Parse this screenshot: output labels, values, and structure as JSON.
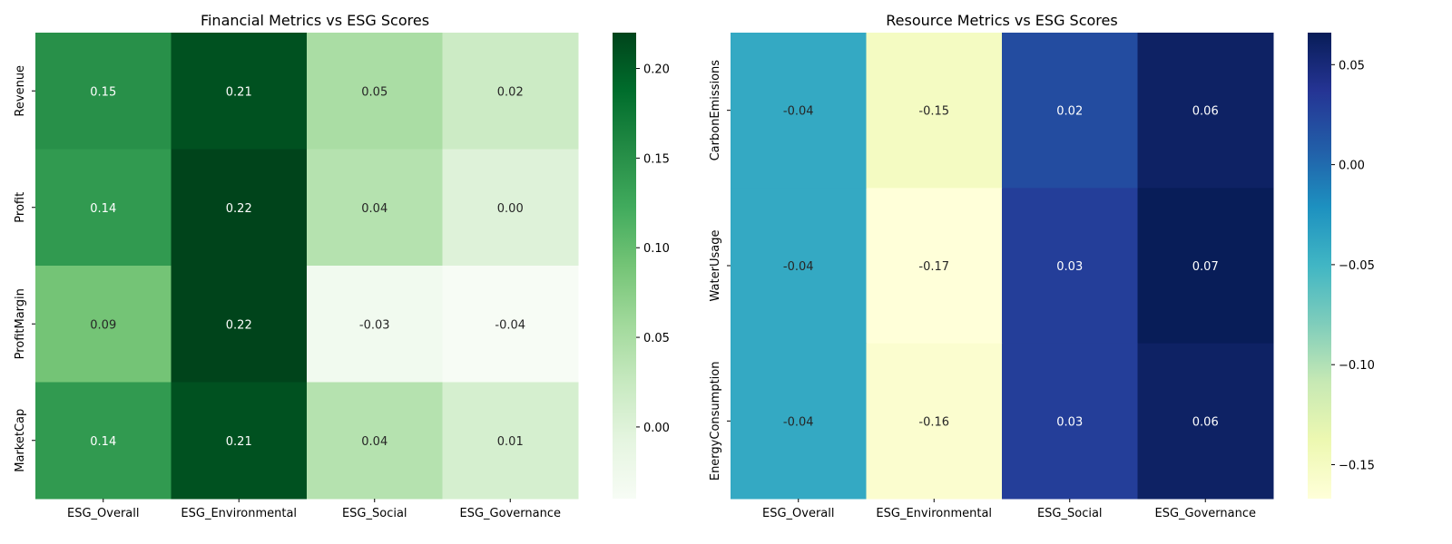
{
  "chart_data": [
    {
      "type": "heatmap",
      "title": "Financial Metrics vs ESG Scores",
      "xlabel": "",
      "ylabel": "",
      "columns": [
        "ESG_Overall",
        "ESG_Environmental",
        "ESG_Social",
        "ESG_Governance"
      ],
      "rows": [
        "Revenue",
        "Profit",
        "ProfitMargin",
        "MarketCap"
      ],
      "values": [
        [
          0.15,
          0.21,
          0.05,
          0.02
        ],
        [
          0.14,
          0.22,
          0.04,
          0.0
        ],
        [
          0.09,
          0.22,
          -0.03,
          -0.04
        ],
        [
          0.14,
          0.21,
          0.04,
          0.01
        ]
      ],
      "labels": [
        [
          "0.15",
          "0.21",
          "0.05",
          "0.02"
        ],
        [
          "0.14",
          "0.22",
          "0.04",
          "0.00"
        ],
        [
          "0.09",
          "0.22",
          "-0.03",
          "-0.04"
        ],
        [
          "0.14",
          "0.21",
          "0.04",
          "0.01"
        ]
      ],
      "colormap": "Greens",
      "colormap_stops": [
        "#f7fcf5",
        "#e5f5e0",
        "#c7e9c0",
        "#a1d99b",
        "#74c476",
        "#41ab5d",
        "#238b45",
        "#006d2c",
        "#00441b"
      ],
      "vmin": -0.04,
      "vmax": 0.22,
      "colorbar_ticks": [
        0.0,
        0.05,
        0.1,
        0.15,
        0.2
      ],
      "colorbar_tick_labels": [
        "0.00",
        "0.05",
        "0.10",
        "0.15",
        "0.20"
      ]
    },
    {
      "type": "heatmap",
      "title": "Resource Metrics vs ESG Scores",
      "xlabel": "",
      "ylabel": "",
      "columns": [
        "ESG_Overall",
        "ESG_Environmental",
        "ESG_Social",
        "ESG_Governance"
      ],
      "rows": [
        "CarbonEmissions",
        "WaterUsage",
        "EnergyConsumption"
      ],
      "values": [
        [
          -0.04,
          -0.15,
          0.02,
          0.06
        ],
        [
          -0.04,
          -0.17,
          0.03,
          0.07
        ],
        [
          -0.04,
          -0.16,
          0.03,
          0.06
        ]
      ],
      "labels": [
        [
          "-0.04",
          "-0.15",
          "0.02",
          "0.06"
        ],
        [
          "-0.04",
          "-0.17",
          "0.03",
          "0.07"
        ],
        [
          "-0.04",
          "-0.16",
          "0.03",
          "0.06"
        ]
      ],
      "colormap": "YlGnBu",
      "colormap_stops": [
        "#ffffd9",
        "#edf8b1",
        "#c7e9b4",
        "#7fcdbb",
        "#41b6c4",
        "#1d91c0",
        "#225ea8",
        "#253494",
        "#081d58"
      ],
      "vmin": -0.167,
      "vmax": 0.066,
      "colorbar_ticks": [
        -0.15,
        -0.1,
        -0.05,
        0.0,
        0.05
      ],
      "colorbar_tick_labels": [
        "−0.15",
        "−0.10",
        "−0.05",
        "0.00",
        "0.05"
      ]
    }
  ]
}
